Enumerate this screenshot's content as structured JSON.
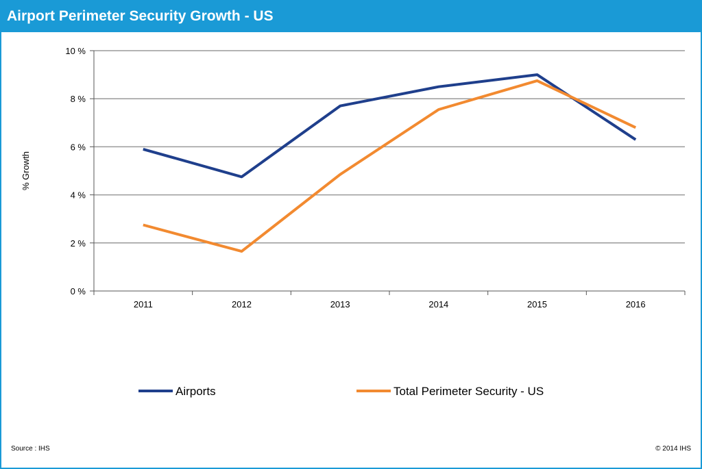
{
  "header": {
    "title": "Airport Perimeter Security Growth - US"
  },
  "footer": {
    "source": "Source : IHS",
    "copyright": "© 2014 IHS"
  },
  "colors": {
    "header_bg": "#1a9ad6",
    "airports": "#1f3f8c",
    "total": "#f28a30",
    "grid": "#9a9a9a"
  },
  "chart_data": {
    "type": "line",
    "title": "Airport Perimeter Security Growth - US",
    "xlabel": "",
    "ylabel": "% Growth",
    "categories": [
      "2011",
      "2012",
      "2013",
      "2014",
      "2015",
      "2016"
    ],
    "yticks": [
      "0 %",
      "2 %",
      "4 %",
      "6 %",
      "8 %",
      "10 %"
    ],
    "ylim": [
      0,
      10
    ],
    "grid": true,
    "legend_position": "bottom",
    "series": [
      {
        "name": "Airports",
        "color": "#1f3f8c",
        "values": [
          5.9,
          4.75,
          7.7,
          8.5,
          9.0,
          6.3
        ]
      },
      {
        "name": "Total Perimeter Security - US",
        "color": "#f28a30",
        "values": [
          2.75,
          1.65,
          4.85,
          7.55,
          8.75,
          6.8
        ]
      }
    ]
  }
}
